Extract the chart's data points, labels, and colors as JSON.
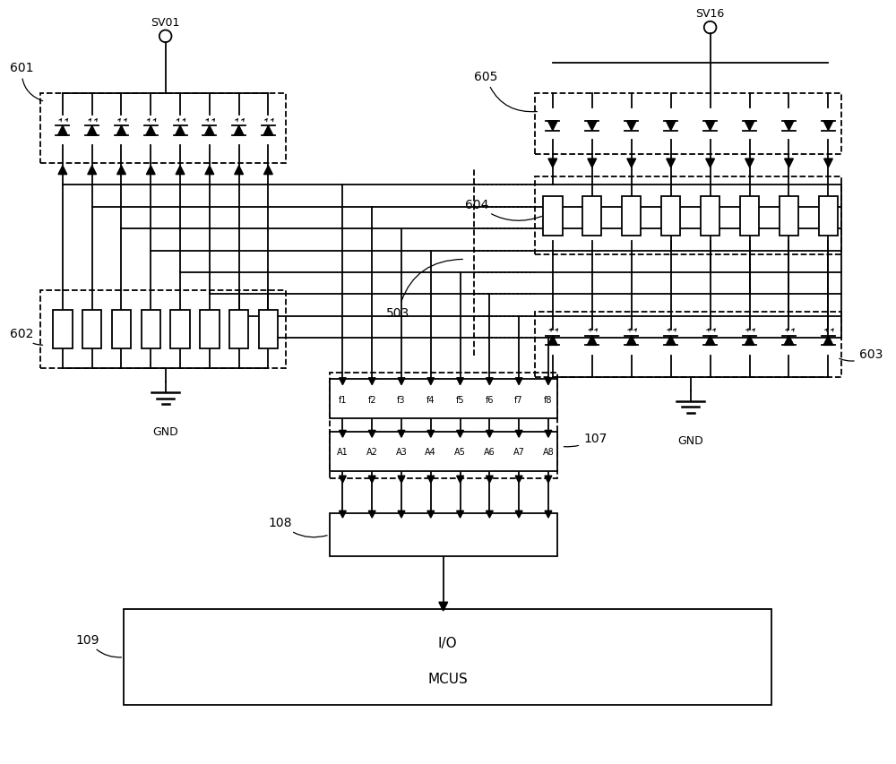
{
  "bg_color": "#ffffff",
  "n": 8,
  "freq_labels": [
    "f1",
    "f2",
    "f3",
    "f4",
    "f5",
    "f6",
    "f7",
    "f8"
  ],
  "amp_labels": [
    "A1",
    "A2",
    "A3",
    "A4",
    "A5",
    "A6",
    "A7",
    "A8"
  ],
  "lw": 1.3,
  "lw_thick": 1.8
}
